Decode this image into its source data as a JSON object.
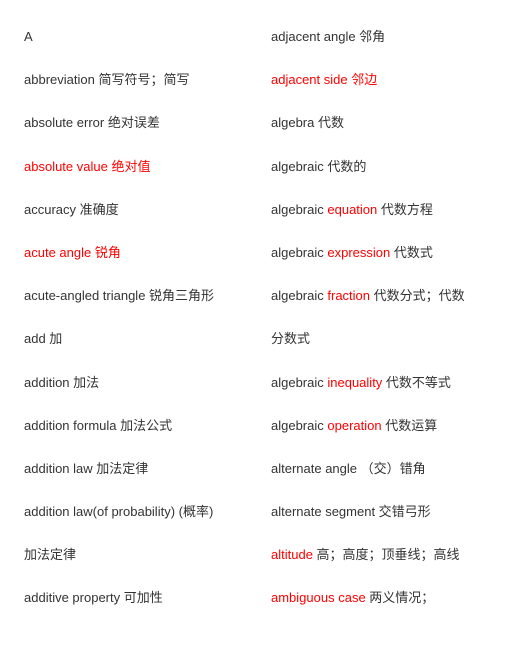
{
  "left": [
    {
      "parts": [
        {
          "text": "A",
          "red": false
        }
      ]
    },
    {
      "parts": [
        {
          "text": "abbreviation  简写符号；简写",
          "red": false
        }
      ]
    },
    {
      "parts": [
        {
          "text": "absolute error  绝对误差",
          "red": false
        }
      ]
    },
    {
      "parts": [
        {
          "text": "absolute value  绝对值",
          "red": true
        }
      ]
    },
    {
      "parts": [
        {
          "text": "accuracy  准确度",
          "red": false
        }
      ]
    },
    {
      "parts": [
        {
          "text": "acute angle   锐角",
          "red": true
        }
      ]
    },
    {
      "parts": [
        {
          "text": "acute-angled triangle  锐角三角形",
          "red": false
        }
      ]
    },
    {
      "parts": [
        {
          "text": "add 加",
          "red": false
        }
      ]
    },
    {
      "parts": [
        {
          "text": "addition  加法",
          "red": false
        }
      ]
    },
    {
      "parts": [
        {
          "text": "addition formula 加法公式",
          "red": false
        }
      ]
    },
    {
      "parts": [
        {
          "text": "addition law 加法定律",
          "red": false
        }
      ]
    },
    {
      "parts": [
        {
          "text": "addition law(of probability) (概率)",
          "red": false
        }
      ]
    },
    {
      "parts": [
        {
          "text": "加法定律",
          "red": false
        }
      ]
    },
    {
      "parts": [
        {
          "text": "additive property  可加性",
          "red": false
        }
      ]
    }
  ],
  "right": [
    {
      "parts": [
        {
          "text": "adjacent angle  邻角",
          "red": false
        }
      ]
    },
    {
      "parts": [
        {
          "text": "adjacent side  邻边",
          "red": true
        }
      ]
    },
    {
      "parts": [
        {
          "text": "algebra  代数",
          "red": false
        }
      ]
    },
    {
      "parts": [
        {
          "text": "algebraic  代数的",
          "red": false
        }
      ]
    },
    {
      "parts": [
        {
          "text": "algebraic ",
          "red": false
        },
        {
          "text": "equation",
          "red": true
        },
        {
          "text": "  代数方程",
          "red": false
        }
      ]
    },
    {
      "parts": [
        {
          "text": "algebraic ",
          "red": false
        },
        {
          "text": "expression",
          "red": true
        },
        {
          "text": " 代数式",
          "red": false
        }
      ]
    },
    {
      "parts": [
        {
          "text": "algebraic ",
          "red": false
        },
        {
          "text": "fraction",
          "red": true
        },
        {
          "text": "  代数分式；代数",
          "red": false
        }
      ]
    },
    {
      "parts": [
        {
          "text": "分数式",
          "red": false
        }
      ]
    },
    {
      "parts": [
        {
          "text": "algebraic ",
          "red": false
        },
        {
          "text": "inequality",
          "red": true
        },
        {
          "text": " 代数不等式",
          "red": false
        }
      ]
    },
    {
      "parts": [
        {
          "text": "algebraic ",
          "red": false
        },
        {
          "text": "operation",
          "red": true
        },
        {
          "text": "  代数运算",
          "red": false
        }
      ]
    },
    {
      "parts": [
        {
          "text": "alternate angle   （交）错角",
          "red": false
        }
      ]
    },
    {
      "parts": [
        {
          "text": "alternate segment  交错弓形",
          "red": false
        }
      ]
    },
    {
      "parts": [
        {
          "text": "altitude",
          "red": true
        },
        {
          "text": " 高；高度；顶垂线；高线",
          "red": false
        }
      ]
    },
    {
      "parts": [
        {
          "text": "ambiguous case",
          "red": true
        },
        {
          "text": "  两义情况；",
          "red": false
        }
      ]
    }
  ]
}
